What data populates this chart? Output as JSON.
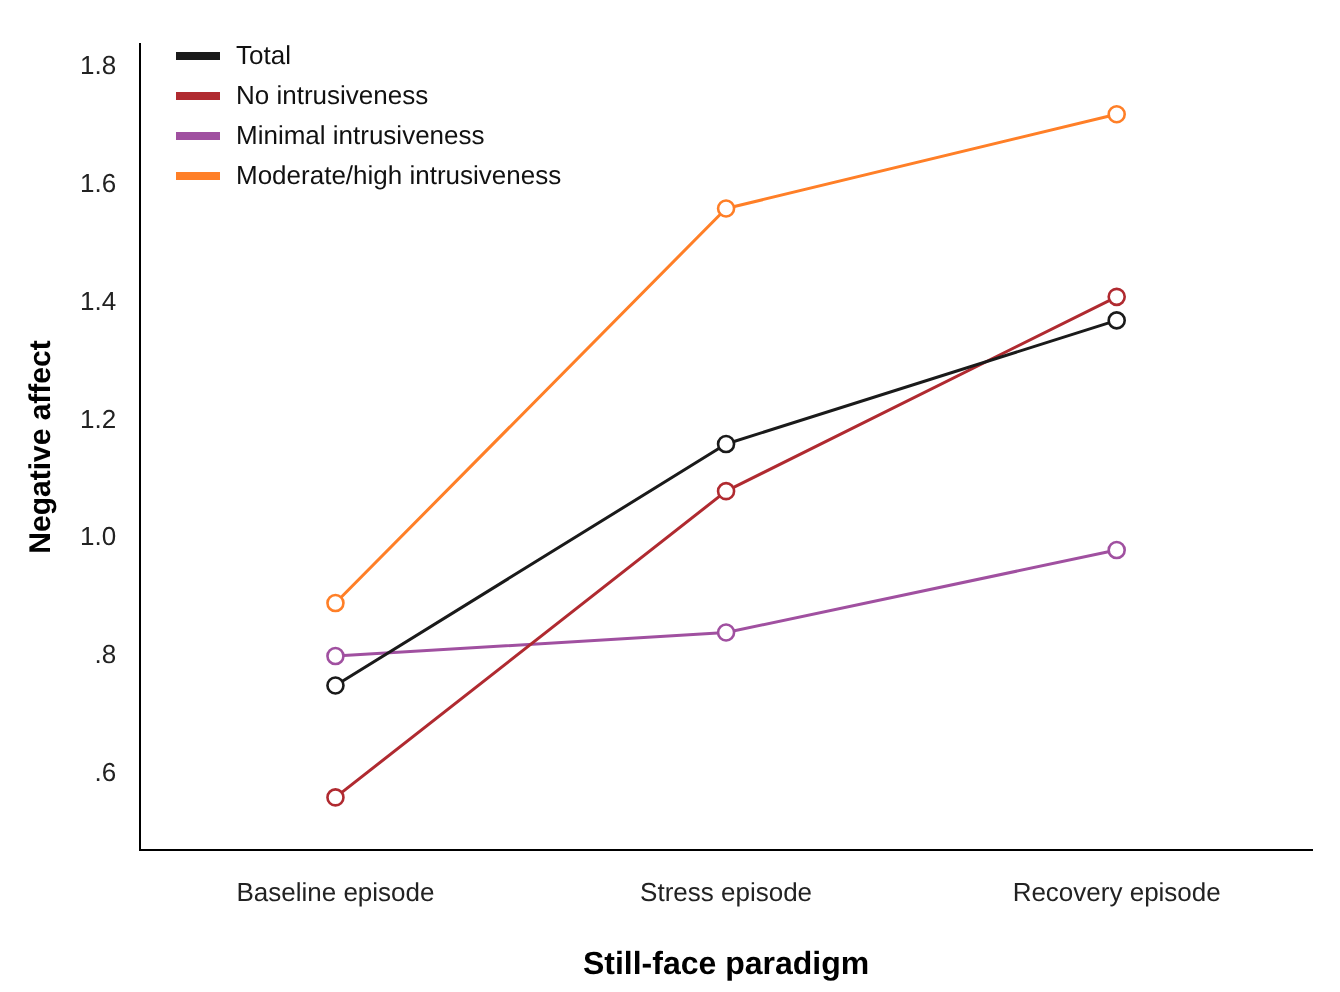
{
  "chart_data": {
    "type": "line",
    "xlabel": "Still-face paradigm",
    "ylabel": "Negative affect",
    "categories": [
      "Baseline episode",
      "Stress episode",
      "Recovery episode"
    ],
    "series": [
      {
        "name": "Total",
        "color": "#1a1a1a",
        "values": [
          0.75,
          1.16,
          1.37
        ]
      },
      {
        "name": "No intrusiveness",
        "color": "#b02a30",
        "values": [
          0.56,
          1.08,
          1.41
        ]
      },
      {
        "name": "Minimal intrusiveness",
        "color": "#a050a0",
        "values": [
          0.8,
          0.84,
          0.98
        ]
      },
      {
        "name": "Moderate/high intrusiveness",
        "color": "#ff7f27",
        "values": [
          0.89,
          1.56,
          1.72
        ]
      }
    ],
    "ylim": [
      0.47,
      1.84
    ],
    "yticks": [
      {
        "value": 0.6,
        "label": ".6"
      },
      {
        "value": 0.8,
        "label": ".8"
      },
      {
        "value": 1.0,
        "label": "1.0"
      },
      {
        "value": 1.2,
        "label": "1.2"
      },
      {
        "value": 1.4,
        "label": "1.4"
      },
      {
        "value": 1.6,
        "label": "1.6"
      },
      {
        "value": 1.8,
        "label": "1.8"
      }
    ],
    "legend": "top left",
    "marker": "circle",
    "grid": false
  }
}
